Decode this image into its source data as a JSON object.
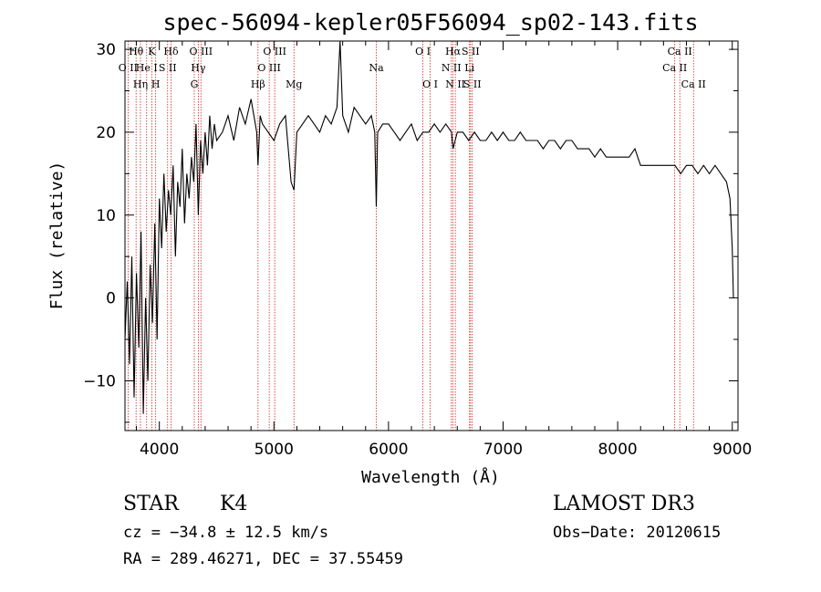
{
  "chart_data": {
    "type": "line",
    "title": "spec-56094-kepler05F56094_sp02-143.fits",
    "xlabel": "Wavelength (Å)",
    "ylabel": "Flux (relative)",
    "xlim": [
      3700,
      9050
    ],
    "ylim": [
      -16,
      31
    ],
    "xticks": [
      4000,
      5000,
      6000,
      7000,
      8000,
      9000
    ],
    "yticks": [
      -10,
      0,
      10,
      20,
      30
    ],
    "grid": false,
    "series": [
      {
        "name": "flux",
        "x": [
          3700,
          3720,
          3740,
          3760,
          3780,
          3800,
          3820,
          3840,
          3860,
          3880,
          3900,
          3920,
          3940,
          3960,
          3980,
          4000,
          4020,
          4040,
          4060,
          4080,
          4100,
          4120,
          4140,
          4160,
          4180,
          4200,
          4220,
          4240,
          4260,
          4280,
          4300,
          4320,
          4340,
          4360,
          4380,
          4400,
          4420,
          4440,
          4460,
          4480,
          4500,
          4550,
          4600,
          4650,
          4700,
          4750,
          4800,
          4850,
          4861,
          4880,
          4900,
          4950,
          5000,
          5050,
          5100,
          5150,
          5175,
          5200,
          5250,
          5300,
          5350,
          5400,
          5450,
          5500,
          5550,
          5577,
          5600,
          5650,
          5700,
          5750,
          5800,
          5850,
          5880,
          5893,
          5905,
          5950,
          6000,
          6050,
          6100,
          6150,
          6200,
          6250,
          6300,
          6350,
          6400,
          6450,
          6500,
          6550,
          6563,
          6600,
          6650,
          6700,
          6750,
          6800,
          6850,
          6900,
          6950,
          7000,
          7050,
          7100,
          7150,
          7200,
          7250,
          7300,
          7350,
          7400,
          7450,
          7500,
          7550,
          7600,
          7650,
          7700,
          7750,
          7800,
          7850,
          7900,
          7950,
          8000,
          8050,
          8100,
          8150,
          8200,
          8250,
          8300,
          8350,
          8400,
          8450,
          8500,
          8550,
          8600,
          8650,
          8700,
          8750,
          8800,
          8850,
          8900,
          8950,
          8980,
          9000,
          9010
        ],
        "y": [
          -5,
          2,
          -8,
          5,
          -12,
          3,
          -6,
          8,
          -14,
          0,
          -10,
          4,
          -3,
          9,
          -5,
          12,
          6,
          15,
          8,
          13,
          10,
          16,
          5,
          14,
          11,
          18,
          9,
          15,
          12,
          17,
          14,
          21,
          10,
          19,
          15,
          20,
          16,
          22,
          18,
          21,
          19,
          20,
          22,
          19,
          23,
          21,
          24,
          20,
          16,
          22,
          21,
          20,
          19,
          21,
          22,
          14,
          13,
          20,
          21,
          22,
          21,
          20,
          22,
          21,
          23,
          31,
          22,
          20,
          23,
          22,
          21,
          22,
          20,
          11,
          20,
          21,
          21,
          20,
          19,
          20,
          21,
          19,
          20,
          20,
          21,
          20,
          21,
          20,
          18,
          20,
          20,
          19,
          20,
          19,
          19,
          20,
          19,
          20,
          19,
          19,
          20,
          19,
          19,
          19,
          18,
          19,
          19,
          18,
          19,
          19,
          18,
          18,
          18,
          17,
          18,
          17,
          17,
          17,
          17,
          17,
          18,
          16,
          16,
          16,
          16,
          16,
          16,
          16,
          15,
          16,
          16,
          15,
          16,
          15,
          16,
          15,
          14,
          12,
          6,
          0
        ]
      }
    ],
    "spectral_lines": [
      {
        "label": "O II",
        "wave": 3727,
        "tier": 2
      },
      {
        "label": "Hθ",
        "wave": 3797,
        "tier": 1
      },
      {
        "label": "Hη",
        "wave": 3835,
        "tier": 3
      },
      {
        "label": "He I",
        "wave": 3889,
        "tier": 2
      },
      {
        "label": "K",
        "wave": 3934,
        "tier": 1
      },
      {
        "label": "H",
        "wave": 3968,
        "tier": 3
      },
      {
        "label": "S II",
        "wave": 4072,
        "tier": 2
      },
      {
        "label": "Hδ",
        "wave": 4102,
        "tier": 1
      },
      {
        "label": "G",
        "wave": 4305,
        "tier": 3
      },
      {
        "label": "Hγ",
        "wave": 4340,
        "tier": 2
      },
      {
        "label": "O III",
        "wave": 4363,
        "tier": 1
      },
      {
        "label": "Hβ",
        "wave": 4861,
        "tier": 3
      },
      {
        "label": "O III",
        "wave": 4959,
        "tier": 2
      },
      {
        "label": "O III",
        "wave": 5007,
        "tier": 1
      },
      {
        "label": "Mg",
        "wave": 5175,
        "tier": 3
      },
      {
        "label": "Na",
        "wave": 5894,
        "tier": 2
      },
      {
        "label": "O I",
        "wave": 6300,
        "tier": 1
      },
      {
        "label": "O I",
        "wave": 6364,
        "tier": 3
      },
      {
        "label": "N II",
        "wave": 6548,
        "tier": 2
      },
      {
        "label": "Hα",
        "wave": 6563,
        "tier": 1
      },
      {
        "label": "N II",
        "wave": 6583,
        "tier": 3
      },
      {
        "label": "Li",
        "wave": 6707,
        "tier": 2
      },
      {
        "label": "S II",
        "wave": 6716,
        "tier": 1
      },
      {
        "label": "S II",
        "wave": 6731,
        "tier": 3
      },
      {
        "label": "Ca II",
        "wave": 8498,
        "tier": 2
      },
      {
        "label": "Ca II",
        "wave": 8542,
        "tier": 1
      },
      {
        "label": "Ca II",
        "wave": 8662,
        "tier": 3
      }
    ]
  },
  "info": {
    "object_class": "STAR",
    "subclass": "K4",
    "survey": "LAMOST DR3",
    "cz_line": "cz = −34.8 ± 12.5 km/s",
    "obs_date_line": "Obs−Date: 20120615",
    "coords_line": "RA = 289.46271, DEC =  37.55459"
  },
  "colors": {
    "spectrum": "#000000",
    "line_marker": "#cc2222",
    "axes": "#000000"
  }
}
